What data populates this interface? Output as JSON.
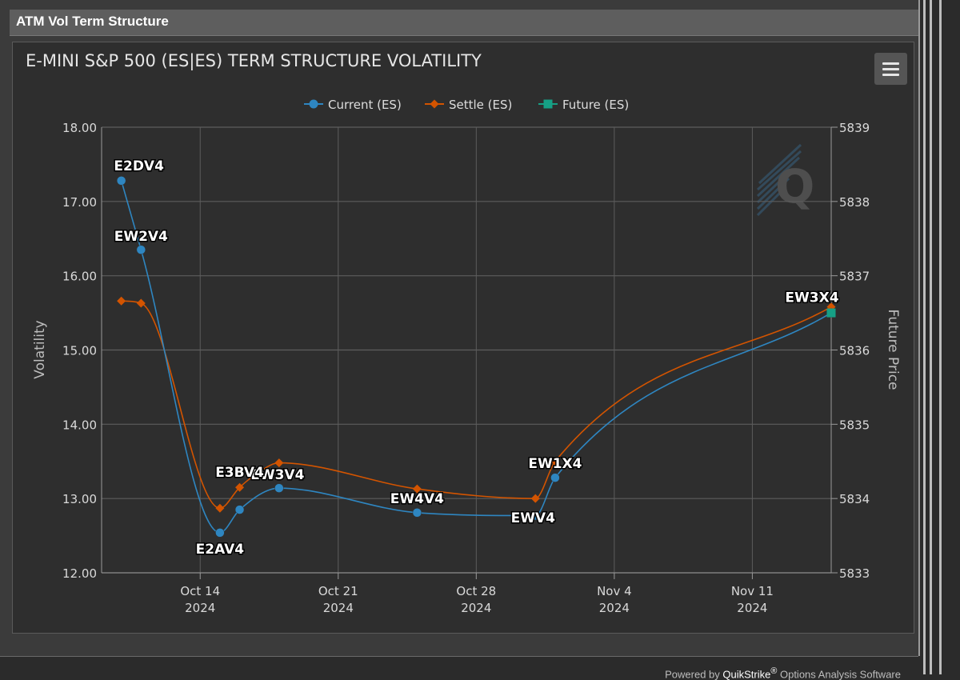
{
  "panel": {
    "title": "ATM Vol Term Structure"
  },
  "footer": {
    "prefix": "Powered by ",
    "brand": "QuikStrike",
    "reg": "®",
    "suffix": " Options Analysis Software"
  },
  "menu_icon": "hamburger-menu-icon",
  "watermark_icon": "quikstrike-q-logo",
  "colors": {
    "current": "#2e86c1",
    "settle": "#d35400",
    "future": "#16a085",
    "grid": "#5d5d5d",
    "axis_text": "#d9d9d9",
    "title_text": "#e6e6e6"
  },
  "chart_data": {
    "type": "line",
    "title": "E-MINI S&P 500 (ES|ES) TERM STRUCTURE VOLATILITY",
    "ylabel": "Volatility",
    "y2label": "Future Price",
    "ylim": [
      12,
      18
    ],
    "y2lim": [
      5833,
      5839
    ],
    "yticks": [
      "12.00",
      "13.00",
      "14.00",
      "15.00",
      "16.00",
      "17.00",
      "18.00"
    ],
    "y2ticks": [
      "5833",
      "5834",
      "5835",
      "5836",
      "5837",
      "5838",
      "5839"
    ],
    "xlim": [
      "2024-10-09",
      "2024-11-15"
    ],
    "xticks": [
      {
        "date": "2024-10-14",
        "line1": "Oct 14",
        "line2": "2024"
      },
      {
        "date": "2024-10-21",
        "line1": "Oct 21",
        "line2": "2024"
      },
      {
        "date": "2024-10-28",
        "line1": "Oct 28",
        "line2": "2024"
      },
      {
        "date": "2024-11-04",
        "line1": "Nov 4",
        "line2": "2024"
      },
      {
        "date": "2024-11-11",
        "line1": "Nov 11",
        "line2": "2024"
      }
    ],
    "grid": true,
    "legend_position": "top-center",
    "series": [
      {
        "name": "Current (ES)",
        "marker": "circle",
        "points": [
          {
            "x": "2024-10-10",
            "y": 17.28,
            "label": "E2DV4"
          },
          {
            "x": "2024-10-11",
            "y": 16.35,
            "label": "EW2V4"
          },
          {
            "x": "2024-10-15",
            "y": 12.54,
            "label": "E2AV4"
          },
          {
            "x": "2024-10-16",
            "y": 12.85,
            "label": ""
          },
          {
            "x": "2024-10-18",
            "y": 13.14,
            "label": "EW3V4"
          },
          {
            "x": "2024-10-25",
            "y": 12.81,
            "label": "EW4V4"
          },
          {
            "x": "2024-10-31",
            "y": 12.77,
            "label": ""
          },
          {
            "x": "2024-11-01",
            "y": 13.28,
            "label": "EW1X4"
          },
          {
            "x": "2024-11-15",
            "y": 15.5,
            "label": ""
          }
        ]
      },
      {
        "name": "Settle (ES)",
        "marker": "diamond",
        "points": [
          {
            "x": "2024-10-10",
            "y": 15.66,
            "label": ""
          },
          {
            "x": "2024-10-11",
            "y": 15.63,
            "label": ""
          },
          {
            "x": "2024-10-15",
            "y": 12.87,
            "label": ""
          },
          {
            "x": "2024-10-16",
            "y": 13.15,
            "label": "E3BV4"
          },
          {
            "x": "2024-10-17",
            "y": 13.36,
            "label": ""
          },
          {
            "x": "2024-10-18",
            "y": 13.48,
            "label": ""
          },
          {
            "x": "2024-10-25",
            "y": 13.13,
            "label": ""
          },
          {
            "x": "2024-10-31",
            "y": 13.0,
            "label": "EWV4"
          },
          {
            "x": "2024-11-01",
            "y": 13.5,
            "label": ""
          },
          {
            "x": "2024-11-15",
            "y": 15.58,
            "label": "EW3X4"
          }
        ]
      },
      {
        "name": "Future (ES)",
        "marker": "square",
        "axis": "right",
        "points": [
          {
            "x": "2024-11-15",
            "y": 5836.5,
            "label": ""
          }
        ]
      }
    ]
  }
}
